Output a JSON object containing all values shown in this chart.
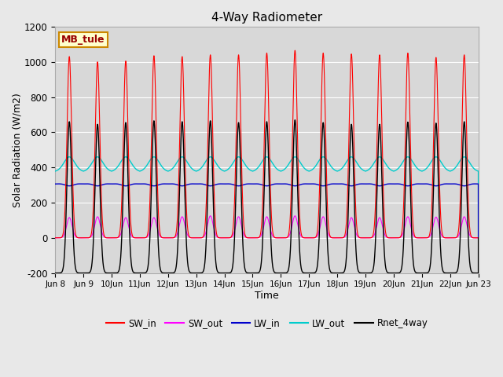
{
  "title": "4-Way Radiometer",
  "xlabel": "Time",
  "ylabel": "Solar Radiation (W/m2)",
  "ylim": [
    -200,
    1200
  ],
  "yticks": [
    -200,
    0,
    200,
    400,
    600,
    800,
    1000,
    1200
  ],
  "start_day": 8,
  "end_day": 23,
  "n_days": 15,
  "colors": {
    "SW_in": "#ff0000",
    "SW_out": "#ff00ff",
    "LW_in": "#0000cc",
    "LW_out": "#00cccc",
    "Rnet_4way": "#000000"
  },
  "legend_label": "MB_tule",
  "legend_bg": "#ffffcc",
  "legend_border": "#cc8800",
  "fig_bg": "#e8e8e8",
  "plot_bg": "#d8d8d8",
  "SW_in_peaks": [
    1030,
    1000,
    1005,
    1035,
    1030,
    1040,
    1040,
    1050,
    1065,
    1050,
    1045,
    1040,
    1050,
    1025,
    1040
  ],
  "SW_out_peaks": [
    115,
    120,
    115,
    115,
    120,
    125,
    120,
    120,
    125,
    120,
    115,
    115,
    120,
    118,
    120
  ],
  "LW_in_base": 310,
  "LW_out_base": 390,
  "LW_amplitude": 50,
  "Rnet_peaks": [
    760,
    745,
    755,
    765,
    760,
    765,
    755,
    760,
    770,
    755,
    745,
    745,
    758,
    752,
    760
  ],
  "Rnet_night": -100
}
